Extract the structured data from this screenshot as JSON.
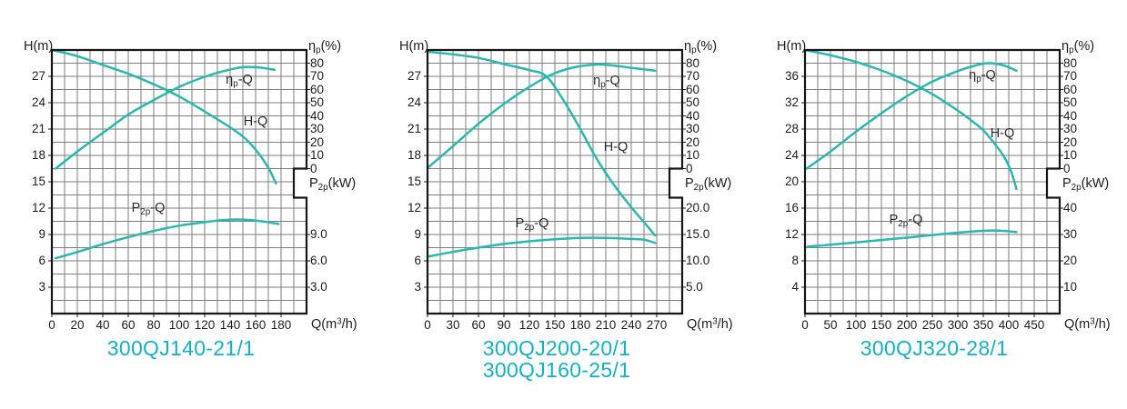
{
  "colors": {
    "curve": "#2ab7af",
    "title": "#14b1c5",
    "grid": "#7d7d7d",
    "border": "#161616",
    "text": "#1c1c1c"
  },
  "chart_data": [
    {
      "type": "line",
      "titles": [
        "300QJ140-21/1"
      ],
      "x_axis": {
        "label_parts": {
          "pre": "Q(m",
          "sup": "3",
          "post": "/h)"
        },
        "max": 200,
        "ticks": [
          0,
          20,
          40,
          60,
          80,
          100,
          120,
          140,
          160,
          180
        ]
      },
      "h_axis": {
        "label": "H(m)",
        "max": 30,
        "ticks": [
          27,
          24,
          21,
          18,
          15,
          12,
          9,
          6,
          3
        ]
      },
      "eta_axis": {
        "label_parts": {
          "sym": "η",
          "sub": "p",
          "unit": "(%)"
        },
        "ticks": [
          80,
          70,
          60,
          50,
          40,
          30,
          20,
          10,
          0
        ]
      },
      "p_axis": {
        "label_parts": {
          "sym": "P",
          "sub": "2p",
          "unit": "(kW)"
        },
        "tick_labels": [
          "9.0",
          "6.0",
          "3.0"
        ],
        "tick_values": [
          9,
          6,
          3
        ],
        "tick_rows": [
          14,
          16,
          18
        ]
      },
      "series": [
        {
          "id": "h-q",
          "name_parts": {
            "text": "H-Q"
          },
          "units": "m",
          "label_pos": [
            224,
            79
          ],
          "points": [
            [
              0,
              30
            ],
            [
              20,
              29.3
            ],
            [
              40,
              28.3
            ],
            [
              60,
              27.3
            ],
            [
              80,
              26.1
            ],
            [
              100,
              24.7
            ],
            [
              120,
              23.0
            ],
            [
              140,
              21.2
            ],
            [
              152,
              19.9
            ],
            [
              162,
              18.3
            ],
            [
              170,
              16.6
            ],
            [
              176,
              14.8
            ]
          ]
        },
        {
          "id": "eta-q",
          "name_parts": {
            "sym": "η",
            "sub": "p",
            "text": "-Q"
          },
          "units": "%",
          "label_pos": [
            206,
            33
          ],
          "points": [
            [
              3,
              0
            ],
            [
              20,
              13
            ],
            [
              40,
              27
            ],
            [
              60,
              41
            ],
            [
              80,
              52
            ],
            [
              100,
              62
            ],
            [
              118,
              69
            ],
            [
              135,
              74
            ],
            [
              150,
              77
            ],
            [
              162,
              76.8
            ],
            [
              175,
              75
            ]
          ]
        },
        {
          "id": "p2p-q",
          "name_parts": {
            "sym": "P",
            "sub": "2p",
            "text": "-Q"
          },
          "units": "kW",
          "label_pos": [
            106,
            174
          ],
          "points": [
            [
              3,
              6.3
            ],
            [
              20,
              7.0
            ],
            [
              40,
              7.9
            ],
            [
              60,
              8.7
            ],
            [
              80,
              9.4
            ],
            [
              100,
              10.0
            ],
            [
              120,
              10.4
            ],
            [
              135,
              10.65
            ],
            [
              150,
              10.7
            ],
            [
              165,
              10.5
            ],
            [
              178,
              10.2
            ]
          ]
        }
      ]
    },
    {
      "type": "line",
      "titles": [
        "300QJ200-20/1",
        "300QJ160-25/1"
      ],
      "x_axis": {
        "label_parts": {
          "pre": "Q(m",
          "sup": "3",
          "post": "/h)"
        },
        "max": 300,
        "ticks": [
          0,
          30,
          60,
          90,
          120,
          150,
          180,
          210,
          240,
          270
        ]
      },
      "h_axis": {
        "label": "H(m)",
        "max": 30,
        "ticks": [
          27,
          24,
          21,
          18,
          15,
          12,
          9,
          6,
          3
        ]
      },
      "eta_axis": {
        "label_parts": {
          "sym": "η",
          "sub": "p",
          "unit": "(%)"
        },
        "ticks": [
          80,
          70,
          60,
          50,
          40,
          30,
          20,
          10,
          0
        ]
      },
      "p_axis": {
        "label_parts": {
          "sym": "P",
          "sub": "2p",
          "unit": "(kW)"
        },
        "tick_labels": [
          "20.0",
          "15.0",
          "10.0",
          "5.0"
        ],
        "tick_values": [
          20,
          15,
          10,
          5
        ],
        "tick_rows": [
          12,
          14,
          16,
          18
        ]
      },
      "series": [
        {
          "id": "h-q",
          "name_parts": {
            "text": "H-Q"
          },
          "units": "m",
          "label_pos": [
            207,
            107
          ],
          "points": [
            [
              0,
              29.8
            ],
            [
              30,
              29.5
            ],
            [
              60,
              29.1
            ],
            [
              90,
              28.4
            ],
            [
              120,
              27.7
            ],
            [
              140,
              27.0
            ],
            [
              160,
              24.3
            ],
            [
              180,
              21.0
            ],
            [
              200,
              17.5
            ],
            [
              220,
              14.6
            ],
            [
              240,
              12.1
            ],
            [
              255,
              10.4
            ],
            [
              268,
              8.9
            ]
          ]
        },
        {
          "id": "eta-q",
          "name_parts": {
            "sym": "η",
            "sub": "p",
            "text": "-Q"
          },
          "units": "%",
          "label_pos": [
            197,
            34
          ],
          "points": [
            [
              0,
              0.5
            ],
            [
              30,
              17
            ],
            [
              60,
              34
            ],
            [
              90,
              49
            ],
            [
              120,
              62
            ],
            [
              145,
              71
            ],
            [
              170,
              76.5
            ],
            [
              195,
              78.8
            ],
            [
              215,
              78.5
            ],
            [
              240,
              76.5
            ],
            [
              268,
              74.3
            ]
          ]
        },
        {
          "id": "p2p-q",
          "name_parts": {
            "sym": "P",
            "sub": "2p",
            "text": "-Q"
          },
          "units": "kW",
          "label_pos": [
            115,
            191
          ],
          "points": [
            [
              0,
              10.8
            ],
            [
              30,
              11.7
            ],
            [
              60,
              12.5
            ],
            [
              90,
              13.2
            ],
            [
              120,
              13.7
            ],
            [
              150,
              14.1
            ],
            [
              180,
              14.35
            ],
            [
              210,
              14.35
            ],
            [
              235,
              14.2
            ],
            [
              255,
              14.0
            ],
            [
              268,
              13.4
            ]
          ]
        }
      ]
    },
    {
      "type": "line",
      "titles": [
        "300QJ320-28/1"
      ],
      "x_axis": {
        "label_parts": {
          "pre": "Q(m",
          "sup": "3",
          "post": "/h)"
        },
        "max": 500,
        "ticks": [
          0,
          50,
          100,
          150,
          200,
          250,
          300,
          350,
          400,
          450
        ]
      },
      "h_axis": {
        "label": "H(m)",
        "max": 40,
        "ticks": [
          36,
          32,
          28,
          24,
          20,
          16,
          12,
          8,
          4
        ]
      },
      "eta_axis": {
        "label_parts": {
          "sym": "η",
          "sub": "p",
          "unit": "(%)"
        },
        "ticks": [
          80,
          70,
          60,
          50,
          40,
          30,
          20,
          10,
          0
        ]
      },
      "p_axis": {
        "label_parts": {
          "sym": "P",
          "sub": "2p",
          "unit": "(kW)"
        },
        "tick_labels": [
          "40",
          "30",
          "20",
          "10"
        ],
        "tick_values": [
          40,
          30,
          20,
          10
        ],
        "tick_rows": [
          12,
          14,
          16,
          18
        ]
      },
      "series": [
        {
          "id": "h-q",
          "name_parts": {
            "text": "H-Q"
          },
          "units": "m",
          "label_pos": [
            217,
            92
          ],
          "points": [
            [
              0,
              40
            ],
            [
              50,
              39.2
            ],
            [
              100,
              38.2
            ],
            [
              150,
              36.9
            ],
            [
              200,
              35.3
            ],
            [
              250,
              33.3
            ],
            [
              300,
              30.8
            ],
            [
              330,
              29.1
            ],
            [
              350,
              27.8
            ],
            [
              370,
              26.0
            ],
            [
              390,
              23.9
            ],
            [
              405,
              21.5
            ],
            [
              415,
              18.9
            ]
          ]
        },
        {
          "id": "eta-q",
          "name_parts": {
            "sym": "η",
            "sub": "p",
            "text": "-Q"
          },
          "units": "%",
          "label_pos": [
            195,
            28
          ],
          "points": [
            [
              3,
              0
            ],
            [
              50,
              13
            ],
            [
              100,
              28
            ],
            [
              150,
              42
            ],
            [
              200,
              55
            ],
            [
              250,
              66
            ],
            [
              300,
              74
            ],
            [
              335,
              78.3
            ],
            [
              360,
              80
            ],
            [
              390,
              78.3
            ],
            [
              415,
              74.3
            ]
          ]
        },
        {
          "id": "p2p-q",
          "name_parts": {
            "sym": "P",
            "sub": "2p",
            "text": "-Q"
          },
          "units": "kW",
          "label_pos": [
            111,
            187
          ],
          "points": [
            [
              5,
              25.4
            ],
            [
              50,
              26.1
            ],
            [
              100,
              27.0
            ],
            [
              150,
              27.9
            ],
            [
              200,
              28.8
            ],
            [
              250,
              29.8
            ],
            [
              300,
              30.7
            ],
            [
              340,
              31.3
            ],
            [
              370,
              31.5
            ],
            [
              395,
              31.3
            ],
            [
              415,
              30.9
            ]
          ]
        }
      ]
    }
  ]
}
